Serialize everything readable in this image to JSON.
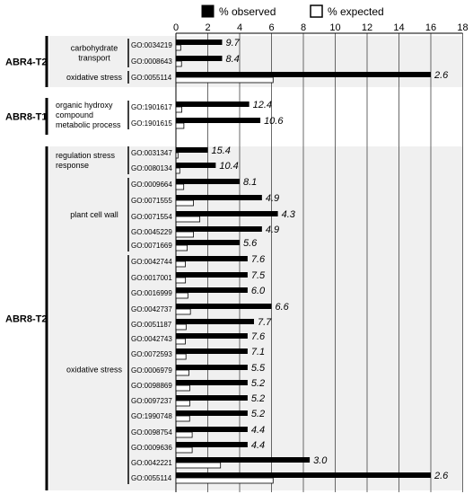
{
  "chart_data": {
    "type": "bar",
    "orientation": "horizontal",
    "xlim": [
      0,
      18
    ],
    "xticks": [
      0,
      2,
      4,
      6,
      8,
      10,
      12,
      14,
      16,
      18
    ],
    "grid": true,
    "legend_position": "top",
    "series": [
      {
        "name": "% observed",
        "color": "#000000",
        "values": [
          2.9,
          2.9,
          16,
          4.6,
          5.3,
          2.0,
          2.5,
          4.0,
          5.4,
          6.4,
          5.4,
          4.0,
          4.5,
          4.5,
          4.5,
          6.0,
          4.9,
          4.5,
          4.5,
          4.5,
          4.5,
          4.5,
          4.5,
          4.5,
          4.5,
          8.4,
          16
        ]
      },
      {
        "name": "% expected",
        "color": "#ffffff",
        "values": [
          0.3,
          0.35,
          6.1,
          0.37,
          0.5,
          0.13,
          0.24,
          0.49,
          1.1,
          1.5,
          1.1,
          0.71,
          0.59,
          0.6,
          0.75,
          0.91,
          0.64,
          0.59,
          0.63,
          0.82,
          0.87,
          0.87,
          0.86,
          1.02,
          1.02,
          2.8,
          6.1
        ]
      }
    ],
    "rows": [
      {
        "set": "ABR4-T2",
        "group": "carbohydrate transport",
        "go": "GO:0034219",
        "label": "9.7"
      },
      {
        "set": "ABR4-T2",
        "group": "carbohydrate transport",
        "go": "GO:0008643",
        "label": "8.4"
      },
      {
        "set": "ABR4-T2",
        "group": "oxidative stress",
        "go": "GO:0055114",
        "label": "2.6"
      },
      {
        "set": "ABR8-T1",
        "group": "organic hydroxy compound metabolic process",
        "go": "GO:1901617",
        "label": "12.4"
      },
      {
        "set": "ABR8-T1",
        "group": "organic hydroxy compound metabolic process",
        "go": "GO:1901615",
        "label": "10.6"
      },
      {
        "set": "ABR8-T2",
        "group": "regulation stress response",
        "go": "GO:0031347",
        "label": "15.4"
      },
      {
        "set": "ABR8-T2",
        "group": "regulation stress response",
        "go": "GO:0080134",
        "label": "10.4"
      },
      {
        "set": "ABR8-T2",
        "group": "plant cell wall",
        "go": "GO:0009664",
        "label": "8.1"
      },
      {
        "set": "ABR8-T2",
        "group": "plant cell wall",
        "go": "GO:0071555",
        "label": "4.9"
      },
      {
        "set": "ABR8-T2",
        "group": "plant cell wall",
        "go": "GO:0071554",
        "label": "4.3"
      },
      {
        "set": "ABR8-T2",
        "group": "plant cell wall",
        "go": "GO:0045229",
        "label": "4.9"
      },
      {
        "set": "ABR8-T2",
        "group": "plant cell wall",
        "go": "GO:0071669",
        "label": "5.6"
      },
      {
        "set": "ABR8-T2",
        "group": "oxidative stress",
        "go": "GO:0042744",
        "label": "7.6"
      },
      {
        "set": "ABR8-T2",
        "group": "oxidative stress",
        "go": "GO:0017001",
        "label": "7.5"
      },
      {
        "set": "ABR8-T2",
        "group": "oxidative stress",
        "go": "GO:0016999",
        "label": "6.0"
      },
      {
        "set": "ABR8-T2",
        "group": "oxidative stress",
        "go": "GO:0042737",
        "label": "6.6"
      },
      {
        "set": "ABR8-T2",
        "group": "oxidative stress",
        "go": "GO:0051187",
        "label": "7.7"
      },
      {
        "set": "ABR8-T2",
        "group": "oxidative stress",
        "go": "GO:0042743",
        "label": "7.6"
      },
      {
        "set": "ABR8-T2",
        "group": "oxidative stress",
        "go": "GO:0072593",
        "label": "7.1"
      },
      {
        "set": "ABR8-T2",
        "group": "oxidative stress",
        "go": "GO:0006979",
        "label": "5.5"
      },
      {
        "set": "ABR8-T2",
        "group": "oxidative stress",
        "go": "GO:0098869",
        "label": "5.2"
      },
      {
        "set": "ABR8-T2",
        "group": "oxidative stress",
        "go": "GO:0097237",
        "label": "5.2"
      },
      {
        "set": "ABR8-T2",
        "group": "oxidative stress",
        "go": "GO:1990748",
        "label": "5.2"
      },
      {
        "set": "ABR8-T2",
        "group": "oxidative stress",
        "go": "GO:0098754",
        "label": "4.4"
      },
      {
        "set": "ABR8-T2",
        "group": "oxidative stress",
        "go": "GO:0009636",
        "label": "4.4"
      },
      {
        "set": "ABR8-T2",
        "group": "oxidative stress",
        "go": "GO:0042221",
        "label": "3.0"
      },
      {
        "set": "ABR8-T2",
        "group": "oxidative stress",
        "go": "GO:0055114",
        "label": "2.6"
      }
    ],
    "sets": [
      "ABR4-T2",
      "ABR8-T1",
      "ABR8-T2"
    ],
    "group_labels": {
      "carbohydrate transport": [
        "carbohydrate",
        "transport"
      ],
      "oxidative stress": [
        "oxidative stress"
      ],
      "organic hydroxy compound metabolic process": [
        "organic hydroxy",
        "compound",
        "metabolic process"
      ],
      "regulation stress response": [
        "regulation stress",
        "response"
      ],
      "plant cell wall": [
        "plant cell wall"
      ]
    },
    "colors": {
      "shade": "#f0f0f0",
      "grid": "#444444",
      "bar": "#000000"
    }
  }
}
